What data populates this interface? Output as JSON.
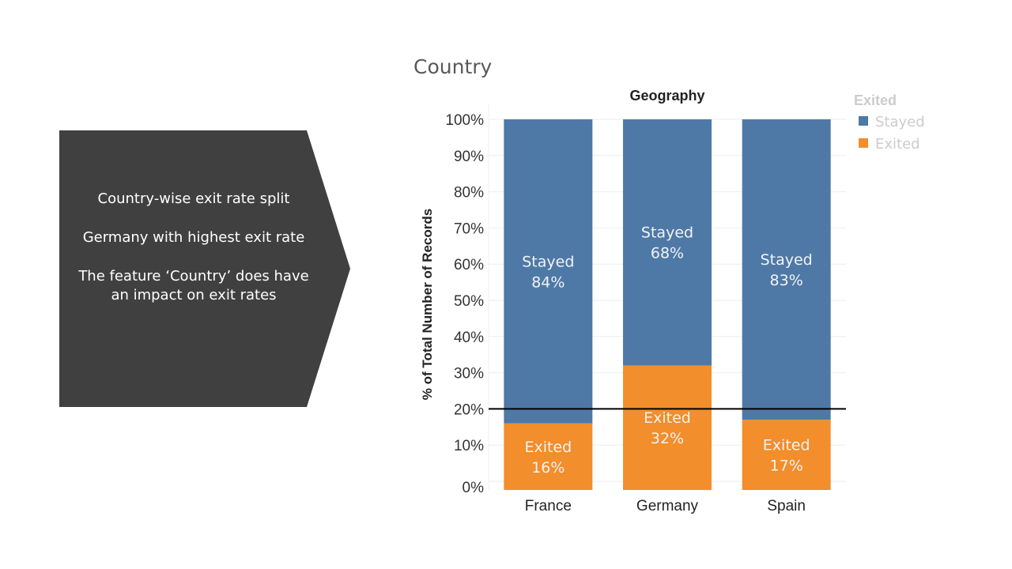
{
  "slide": {
    "title": "Country"
  },
  "callout": {
    "lines": [
      "Country-wise exit rate split",
      "Germany with highest exit rate",
      "The feature ‘Country’ does have an impact on exit rates"
    ],
    "fill": "#404040"
  },
  "chart_data": {
    "type": "bar",
    "stacked": true,
    "title": "Geography",
    "ylabel": "% of Total Number of Records",
    "xlabel": "",
    "categories": [
      "France",
      "Germany",
      "Spain"
    ],
    "series": [
      {
        "name": "Exited",
        "values": [
          16,
          32,
          17
        ],
        "color": "#f28e2b",
        "labels": [
          "16%",
          "32%",
          "17%"
        ]
      },
      {
        "name": "Stayed",
        "values": [
          84,
          68,
          83
        ],
        "color": "#4e79a7",
        "labels": [
          "84%",
          "68%",
          "83%"
        ]
      }
    ],
    "legend": {
      "title": "Exited",
      "entries": [
        "Stayed",
        "Exited"
      ],
      "position": "top-right"
    },
    "yticks": [
      "0%",
      "10%",
      "20%",
      "30%",
      "40%",
      "50%",
      "60%",
      "70%",
      "80%",
      "90%",
      "100%"
    ],
    "ylim": [
      0,
      100
    ],
    "reference_line": 20,
    "grid": true
  }
}
